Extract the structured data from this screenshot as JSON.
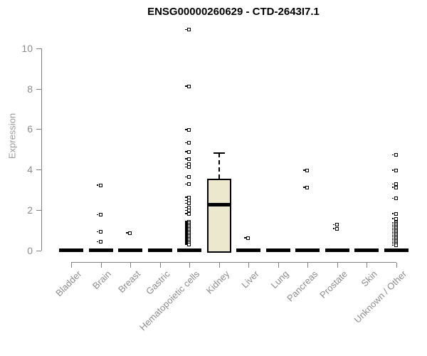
{
  "chart_data": {
    "type": "boxplot",
    "title": "ENSG00000260629 - CTD-2643I7.1",
    "ylabel": "Expression",
    "ylim": [
      0,
      10.9
    ],
    "yticks": [
      0,
      2,
      4,
      6,
      8,
      10
    ],
    "grid": false,
    "categories": [
      "Bladder",
      "Brain",
      "Breast",
      "Gastric",
      "Hematopoietic cells",
      "Kidney",
      "Liver",
      "Lung",
      "Pancreas",
      "Prostate",
      "Skin",
      "Unknown / Other"
    ],
    "boxes": [
      {
        "category": "Bladder",
        "q1": 0,
        "median": 0,
        "q3": 0,
        "whisker_low": 0,
        "whisker_high": 0,
        "outliers": []
      },
      {
        "category": "Brain",
        "q1": 0,
        "median": 0,
        "q3": 0,
        "whisker_low": 0,
        "whisker_high": 0,
        "outliers": [
          3.2,
          1.75,
          0.9,
          0.4
        ]
      },
      {
        "category": "Breast",
        "q1": 0,
        "median": 0,
        "q3": 0,
        "whisker_low": 0,
        "whisker_high": 0,
        "outliers": [
          0.85
        ]
      },
      {
        "category": "Gastric",
        "q1": 0,
        "median": 0,
        "q3": 0,
        "whisker_low": 0,
        "whisker_high": 0,
        "outliers": []
      },
      {
        "category": "Hematopoietic cells",
        "q1": 0,
        "median": 0,
        "q3": 0,
        "whisker_low": 0,
        "whisker_high": 0,
        "outliers": [
          10.9,
          8.1,
          5.95,
          5.3,
          4.85,
          4.5,
          4.25,
          4.1,
          3.6,
          3.25,
          2.6,
          2.45,
          2.3,
          2.1,
          1.95,
          1.8,
          1.4,
          1.33,
          1.26,
          1.19,
          1.12,
          1.05,
          0.98,
          0.91,
          0.84,
          0.77,
          0.7,
          0.63,
          0.56,
          0.49,
          0.42,
          0.35,
          0.28
        ]
      },
      {
        "category": "Kidney",
        "q1": 0,
        "median": 2.25,
        "q3": 3.55,
        "whisker_low": 0,
        "whisker_high": 4.8,
        "outliers": []
      },
      {
        "category": "Liver",
        "q1": 0,
        "median": 0,
        "q3": 0,
        "whisker_low": 0,
        "whisker_high": 0,
        "outliers": [
          0.6
        ]
      },
      {
        "category": "Lung",
        "q1": 0,
        "median": 0,
        "q3": 0,
        "whisker_low": 0,
        "whisker_high": 0,
        "outliers": []
      },
      {
        "category": "Pancreas",
        "q1": 0,
        "median": 0,
        "q3": 0,
        "whisker_low": 0,
        "whisker_high": 0,
        "outliers": [
          3.95,
          3.1
        ]
      },
      {
        "category": "Prostate",
        "q1": 0,
        "median": 0,
        "q3": 0,
        "whisker_low": 0,
        "whisker_high": 0,
        "outliers": [
          1.25,
          1.05
        ]
      },
      {
        "category": "Skin",
        "q1": 0,
        "median": 0,
        "q3": 0,
        "whisker_low": 0,
        "whisker_high": 0,
        "outliers": []
      },
      {
        "category": "Unknown / Other",
        "q1": 0,
        "median": 0,
        "q3": 0,
        "whisker_low": 0,
        "whisker_high": 0,
        "outliers": [
          4.7,
          3.95,
          3.25,
          3.1,
          2.55,
          1.8,
          1.55,
          1.35,
          1.28,
          1.21,
          1.14,
          1.07,
          1.0,
          0.93,
          0.86,
          0.79,
          0.72,
          0.65,
          0.58,
          0.51,
          0.44,
          0.37,
          0.3,
          0.23
        ]
      }
    ],
    "colors": {
      "box_fill": "#ece8cd",
      "box_border": "#000000",
      "axis": "#808080",
      "label_text": "#8c8c8c",
      "title_text": "#000000",
      "background": "#ffffff"
    }
  }
}
